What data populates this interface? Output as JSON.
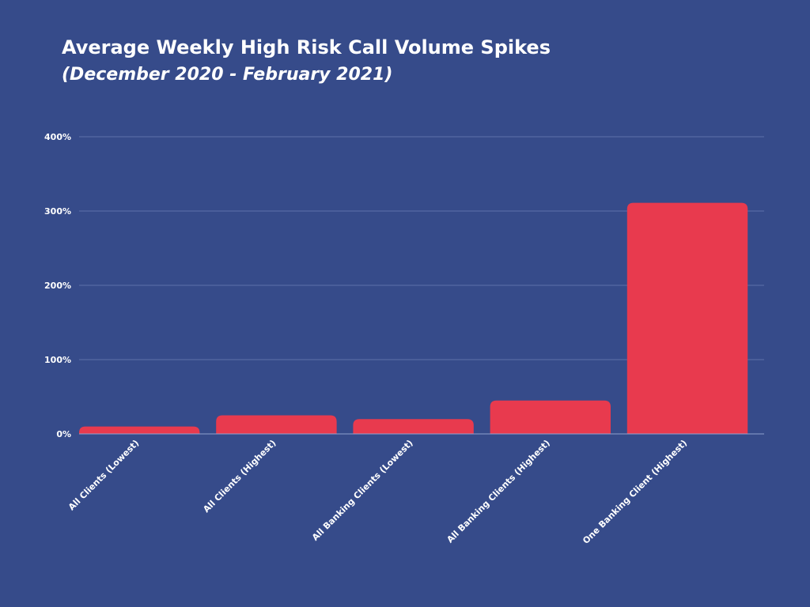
{
  "colors": {
    "background": "#364B8A",
    "bar": "#E83A4E",
    "gridline": "#5E71AB",
    "text": "#FFFFFF"
  },
  "chart_data": {
    "type": "bar",
    "title": "Average Weekly High Risk Call Volume Spikes",
    "subtitle": "(December 2020 - February 2021)",
    "categories": [
      "All Clients (Lowest)",
      "All Clients (Highest)",
      "All Banking Clients (Lowest)",
      "All Banking Clients (Highest)",
      "One Banking Client (Highest)"
    ],
    "values": [
      10,
      25,
      20,
      45,
      311
    ],
    "value_unit": "%",
    "ylim": [
      0,
      400
    ],
    "yticks": [
      0,
      100,
      200,
      300,
      400
    ],
    "ytick_labels": [
      "0%",
      "100%",
      "200%",
      "300%",
      "400%"
    ],
    "grid": "horizontal",
    "legend": "none",
    "xlabel": "",
    "ylabel": ""
  }
}
